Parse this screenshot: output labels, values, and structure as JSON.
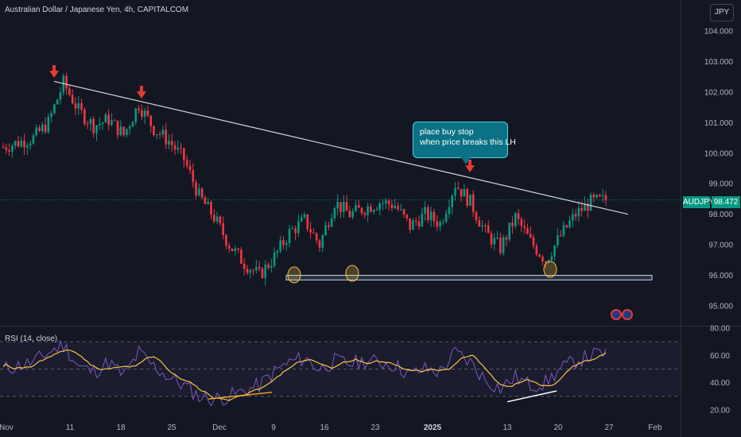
{
  "header": {
    "title": "Australian Dollar / Japanese Yen, 4h, CAPITALCOM",
    "currency_button": "JPY"
  },
  "price_tag": {
    "symbol": "AUDJPY",
    "value": "98.472"
  },
  "callout": {
    "line1": "place buy stop",
    "line2": "when price breaks this LH"
  },
  "rsi": {
    "label": "RSI (14, close)"
  },
  "colors": {
    "up": "#089981",
    "down": "#f23645",
    "trendline": "#d1d4dc",
    "rsi": "#7e57c2",
    "rsi_ma": "#f5c542",
    "arrow": "#e53935",
    "callout": "#0b7285"
  },
  "chart_data": {
    "type": "line",
    "main_y_ticks": [
      "104.000",
      "103.000",
      "102.000",
      "101.000",
      "100.000",
      "99.000",
      "98.000",
      "97.000",
      "96.000",
      "95.000"
    ],
    "rsi_y_ticks": [
      "80.00",
      "60.00",
      "40.00",
      "20.00"
    ],
    "x_ticks": [
      "Nov",
      "11",
      "18",
      "25",
      "Dec",
      "9",
      "16",
      "23",
      "2025",
      "13",
      "20",
      "27",
      "Feb"
    ],
    "x_index": [
      0,
      10,
      15,
      20,
      25,
      30,
      35,
      40,
      45,
      50,
      55,
      60,
      65,
      70,
      75,
      80,
      85,
      90,
      95,
      100,
      105,
      110,
      115,
      120,
      125,
      130,
      135,
      140,
      145,
      150,
      155,
      160,
      165,
      170,
      175,
      180,
      185,
      190,
      195,
      200
    ],
    "price": [
      100.2,
      100.5,
      101.0,
      102.3,
      101.4,
      100.9,
      101.1,
      100.6,
      101.6,
      100.8,
      100.4,
      99.8,
      98.6,
      97.9,
      97.0,
      96.4,
      96.0,
      96.6,
      97.4,
      97.8,
      97.0,
      98.4,
      98.0,
      98.2,
      98.4,
      98.3,
      97.6,
      98.0,
      97.7,
      99.0,
      98.4,
      97.4,
      96.9,
      97.9,
      97.1,
      96.5,
      97.3,
      98.0,
      98.4,
      98.47
    ],
    "rsi_close": [
      50,
      55,
      62,
      68,
      52,
      48,
      55,
      45,
      62,
      52,
      44,
      38,
      30,
      28,
      30,
      34,
      38,
      48,
      55,
      58,
      50,
      56,
      54,
      56,
      55,
      53,
      46,
      50,
      48,
      62,
      55,
      42,
      36,
      44,
      38,
      40,
      50,
      56,
      60,
      62
    ],
    "trendline": {
      "from": [
        "Nov 6",
        102.35
      ],
      "to": [
        "Jan 28",
        98.0
      ]
    },
    "support_zone": [
      95.85,
      96.0
    ],
    "annotations": [
      "place buy stop",
      "when price breaks this LH"
    ],
    "rsi_levels": [
      70,
      50,
      30
    ],
    "last_price": 98.472
  }
}
